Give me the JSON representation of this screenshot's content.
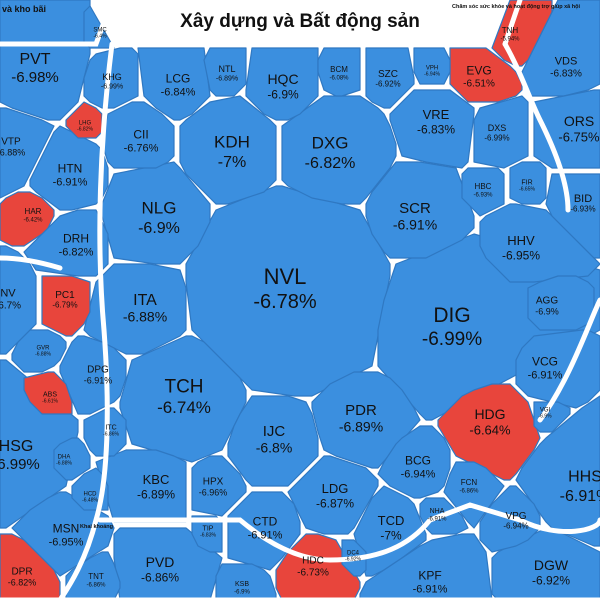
{
  "chart_data": {
    "type": "treemap",
    "title": "Xây dựng và Bất động sản",
    "colors": {
      "down": "#3b8fdf",
      "up": "#e8453c",
      "border": "#ffffff"
    },
    "sections": [
      {
        "id": "cham-soc",
        "label": "Chăm sóc sức khỏe và hoạt động trợ giúp xã hội"
      },
      {
        "id": "kho-bai",
        "label": "và kho bãi"
      },
      {
        "id": "khai-khoang",
        "label": "Khai khoáng"
      }
    ],
    "tiles": [
      {
        "ticker": "NVL",
        "value": "-6.78%",
        "direction": "down"
      },
      {
        "ticker": "DIG",
        "value": "-6.99%",
        "direction": "down"
      },
      {
        "ticker": "TCH",
        "value": "-6.74%",
        "direction": "down"
      },
      {
        "ticker": "KDH",
        "value": "-7%",
        "direction": "down"
      },
      {
        "ticker": "DXG",
        "value": "-6.82%",
        "direction": "down"
      },
      {
        "ticker": "NLG",
        "value": "-6.9%",
        "direction": "down"
      },
      {
        "ticker": "SCR",
        "value": "-6.91%",
        "direction": "down"
      },
      {
        "ticker": "ITA",
        "value": "-6.88%",
        "direction": "down"
      },
      {
        "ticker": "PDR",
        "value": "-6.89%",
        "direction": "down"
      },
      {
        "ticker": "IJC",
        "value": "-6.8%",
        "direction": "down"
      },
      {
        "ticker": "HDG",
        "value": "-6.64%",
        "direction": "up"
      },
      {
        "ticker": "HQC",
        "value": "-6.9%",
        "direction": "down"
      },
      {
        "ticker": "LCG",
        "value": "-6.84%",
        "direction": "down"
      },
      {
        "ticker": "CII",
        "value": "-6.76%",
        "direction": "down"
      },
      {
        "ticker": "VRE",
        "value": "-6.83%",
        "direction": "down"
      },
      {
        "ticker": "DXS",
        "value": "-6.99%",
        "direction": "down"
      },
      {
        "ticker": "HTN",
        "value": "-6.91%",
        "direction": "down"
      },
      {
        "ticker": "DRH",
        "value": "-6.82%",
        "direction": "down"
      },
      {
        "ticker": "HHV",
        "value": "-6.95%",
        "direction": "down"
      },
      {
        "ticker": "KBC",
        "value": "-6.89%",
        "direction": "down"
      },
      {
        "ticker": "LDG",
        "value": "-6.87%",
        "direction": "down"
      },
      {
        "ticker": "BCG",
        "value": "-6.94%",
        "direction": "down"
      },
      {
        "ticker": "VCG",
        "value": "-6.91%",
        "direction": "down"
      },
      {
        "ticker": "CTD",
        "value": "-6.91%",
        "direction": "down"
      },
      {
        "ticker": "TCD",
        "value": "-7%",
        "direction": "down"
      },
      {
        "ticker": "HDC",
        "value": "-6.73%",
        "direction": "up"
      },
      {
        "ticker": "PVD",
        "value": "-6.86%",
        "direction": "down"
      },
      {
        "ticker": "KPF",
        "value": "-6.91%",
        "direction": "down"
      },
      {
        "ticker": "DGW",
        "value": "-6.92%",
        "direction": "down"
      },
      {
        "ticker": "HHS",
        "value": "-6.91%",
        "direction": "down"
      },
      {
        "ticker": "PVT",
        "value": "-6.98%",
        "direction": "down"
      },
      {
        "ticker": "VDS",
        "value": "-6.83%",
        "direction": "down"
      },
      {
        "ticker": "ORS",
        "value": "-6.75%",
        "direction": "down"
      },
      {
        "ticker": "BID",
        "value": "-6.93%",
        "direction": "down"
      },
      {
        "ticker": "HSG",
        "value": "-6.99%",
        "direction": "down"
      },
      {
        "ticker": "MSN",
        "value": "-6.95%",
        "direction": "down"
      },
      {
        "ticker": "EVG",
        "value": "-6.51%",
        "direction": "up"
      },
      {
        "ticker": "KHG",
        "value": "-6.99%",
        "direction": "down"
      },
      {
        "ticker": "NTL",
        "value": "-6.89%",
        "direction": "down"
      },
      {
        "ticker": "BCM",
        "value": "-6.08%",
        "direction": "down"
      },
      {
        "ticker": "SZC",
        "value": "-6.92%",
        "direction": "down"
      },
      {
        "ticker": "VPH",
        "value": "-6.94%",
        "direction": "down"
      },
      {
        "ticker": "HBC",
        "value": "-6.93%",
        "direction": "down"
      },
      {
        "ticker": "FIR",
        "value": "-6.65%",
        "direction": "down"
      },
      {
        "ticker": "AGG",
        "value": "-6.9%",
        "direction": "down"
      },
      {
        "ticker": "DPG",
        "value": "-6.91%",
        "direction": "down"
      },
      {
        "ticker": "HPX",
        "value": "-6.96%",
        "direction": "down"
      },
      {
        "ticker": "FCN",
        "value": "-6.86%",
        "direction": "down"
      },
      {
        "ticker": "NHA",
        "value": "-6.91%",
        "direction": "down"
      },
      {
        "ticker": "VPG",
        "value": "-6.94%",
        "direction": "down"
      },
      {
        "ticker": "PC1",
        "value": "-6.79%",
        "direction": "up"
      },
      {
        "ticker": "HAR",
        "value": "-6.42%",
        "direction": "up"
      },
      {
        "ticker": "ITC",
        "value": "-6.86%",
        "direction": "down"
      },
      {
        "ticker": "TIP",
        "value": "-6.83%",
        "direction": "down"
      },
      {
        "ticker": "TNH",
        "value": "-5.94%",
        "direction": "up"
      },
      {
        "ticker": "DPR",
        "value": "-6.82%",
        "direction": "up"
      },
      {
        "ticker": "TNT",
        "value": "-6.86%",
        "direction": "down"
      },
      {
        "ticker": "KSB",
        "value": "-6.9%",
        "direction": "down"
      },
      {
        "ticker": "VTP",
        "value": "-6.88%",
        "direction": "down"
      },
      {
        "ticker": "ABS",
        "value": "-6.61%",
        "direction": "up"
      },
      {
        "ticker": "SMC",
        "value": "-6.4%",
        "direction": "down"
      },
      {
        "ticker": "HCD",
        "value": "-6.48%",
        "direction": "down"
      },
      {
        "ticker": "DHA",
        "value": "-6.88%",
        "direction": "down"
      },
      {
        "ticker": "GVR",
        "value": "-6.88%",
        "direction": "down"
      },
      {
        "ticker": "LHG",
        "value": "-6.82%",
        "direction": "up"
      },
      {
        "ticker": "DC4",
        "value": "-6.92%",
        "direction": "down"
      },
      {
        "ticker": "NV",
        "value": "-6.7%",
        "direction": "down"
      },
      {
        "ticker": "VGI",
        "value": "-6.9%",
        "direction": "down"
      }
    ]
  }
}
